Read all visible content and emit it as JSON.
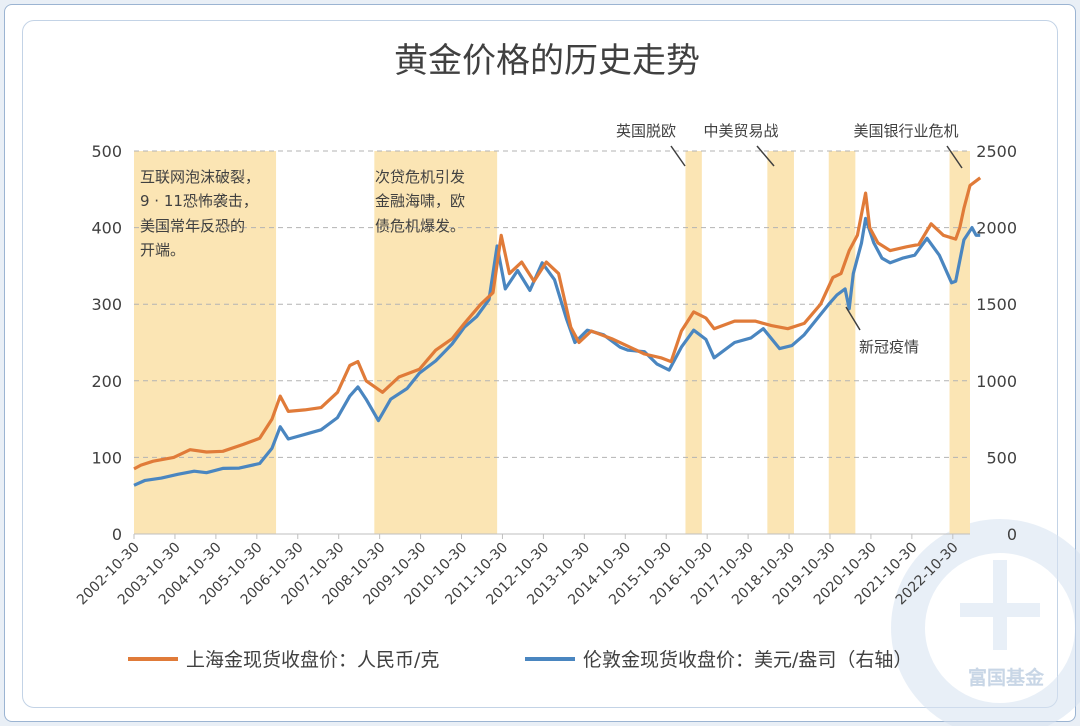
{
  "chart_data": {
    "type": "line",
    "title": "黄金价格的历史走势",
    "x_tick_labels": [
      "2002-10-30",
      "2003-10-30",
      "2004-10-30",
      "2005-10-30",
      "2006-10-30",
      "2007-10-30",
      "2008-10-30",
      "2009-10-30",
      "2010-10-30",
      "2011-10-30",
      "2012-10-30",
      "2013-10-30",
      "2014-10-30",
      "2015-10-30",
      "2016-10-30",
      "2017-10-30",
      "2018-10-30",
      "2019-10-30",
      "2020-10-30",
      "2021-10-30",
      "2022-10-30"
    ],
    "x_range": [
      2002.83,
      2023.25
    ],
    "left_axis": {
      "range": [
        0,
        500
      ],
      "ticks": [
        0,
        100,
        200,
        300,
        400,
        500
      ]
    },
    "right_axis": {
      "range": [
        0,
        2500
      ],
      "ticks": [
        0,
        500,
        1000,
        1500,
        2000,
        2500
      ]
    },
    "grid": "horizontal dashed",
    "legend_position": "bottom",
    "series": [
      {
        "name": "上海金现货收盘价：人民币/克",
        "color": "#e07b39",
        "axis": "left",
        "points": [
          [
            2002.83,
            85
          ],
          [
            2003.0,
            90
          ],
          [
            2003.3,
            95
          ],
          [
            2003.8,
            100
          ],
          [
            2004.2,
            110
          ],
          [
            2004.6,
            107
          ],
          [
            2005.0,
            108
          ],
          [
            2005.5,
            117
          ],
          [
            2005.9,
            125
          ],
          [
            2006.2,
            150
          ],
          [
            2006.4,
            180
          ],
          [
            2006.6,
            160
          ],
          [
            2007.0,
            162
          ],
          [
            2007.4,
            165
          ],
          [
            2007.8,
            185
          ],
          [
            2008.1,
            220
          ],
          [
            2008.3,
            225
          ],
          [
            2008.5,
            200
          ],
          [
            2008.9,
            185
          ],
          [
            2009.3,
            205
          ],
          [
            2009.8,
            215
          ],
          [
            2010.2,
            240
          ],
          [
            2010.6,
            255
          ],
          [
            2010.9,
            275
          ],
          [
            2011.3,
            300
          ],
          [
            2011.6,
            315
          ],
          [
            2011.8,
            390
          ],
          [
            2012.0,
            340
          ],
          [
            2012.3,
            355
          ],
          [
            2012.6,
            330
          ],
          [
            2012.9,
            355
          ],
          [
            2013.2,
            340
          ],
          [
            2013.5,
            270
          ],
          [
            2013.7,
            250
          ],
          [
            2014.0,
            265
          ],
          [
            2014.5,
            255
          ],
          [
            2014.9,
            245
          ],
          [
            2015.3,
            235
          ],
          [
            2015.7,
            230
          ],
          [
            2015.95,
            225
          ],
          [
            2016.2,
            265
          ],
          [
            2016.5,
            290
          ],
          [
            2016.8,
            282
          ],
          [
            2017.0,
            268
          ],
          [
            2017.5,
            278
          ],
          [
            2018.0,
            278
          ],
          [
            2018.4,
            272
          ],
          [
            2018.8,
            268
          ],
          [
            2019.2,
            275
          ],
          [
            2019.6,
            300
          ],
          [
            2019.9,
            335
          ],
          [
            2020.1,
            340
          ],
          [
            2020.3,
            370
          ],
          [
            2020.5,
            390
          ],
          [
            2020.7,
            445
          ],
          [
            2020.8,
            400
          ],
          [
            2021.0,
            380
          ],
          [
            2021.3,
            370
          ],
          [
            2021.7,
            375
          ],
          [
            2022.0,
            378
          ],
          [
            2022.3,
            405
          ],
          [
            2022.6,
            390
          ],
          [
            2022.9,
            385
          ],
          [
            2023.0,
            400
          ],
          [
            2023.1,
            425
          ],
          [
            2023.25,
            455
          ],
          [
            2023.5,
            465
          ]
        ]
      },
      {
        "name": "伦敦金现货收盘价：美元/盎司（右轴）",
        "color": "#4a86c0",
        "axis": "right",
        "points": [
          [
            2002.83,
            318
          ],
          [
            2003.1,
            350
          ],
          [
            2003.5,
            365
          ],
          [
            2003.9,
            390
          ],
          [
            2004.3,
            410
          ],
          [
            2004.6,
            400
          ],
          [
            2005.0,
            428
          ],
          [
            2005.4,
            430
          ],
          [
            2005.9,
            460
          ],
          [
            2006.2,
            560
          ],
          [
            2006.4,
            700
          ],
          [
            2006.6,
            620
          ],
          [
            2007.0,
            650
          ],
          [
            2007.4,
            680
          ],
          [
            2007.8,
            760
          ],
          [
            2008.1,
            900
          ],
          [
            2008.3,
            960
          ],
          [
            2008.5,
            880
          ],
          [
            2008.8,
            740
          ],
          [
            2009.1,
            880
          ],
          [
            2009.5,
            950
          ],
          [
            2009.8,
            1050
          ],
          [
            2010.2,
            1130
          ],
          [
            2010.6,
            1240
          ],
          [
            2010.9,
            1350
          ],
          [
            2011.2,
            1420
          ],
          [
            2011.5,
            1530
          ],
          [
            2011.7,
            1880
          ],
          [
            2011.9,
            1600
          ],
          [
            2012.2,
            1720
          ],
          [
            2012.5,
            1590
          ],
          [
            2012.8,
            1770
          ],
          [
            2013.1,
            1660
          ],
          [
            2013.4,
            1400
          ],
          [
            2013.6,
            1250
          ],
          [
            2013.9,
            1330
          ],
          [
            2014.3,
            1300
          ],
          [
            2014.7,
            1220
          ],
          [
            2014.9,
            1200
          ],
          [
            2015.3,
            1190
          ],
          [
            2015.6,
            1110
          ],
          [
            2015.9,
            1070
          ],
          [
            2016.2,
            1220
          ],
          [
            2016.5,
            1330
          ],
          [
            2016.8,
            1270
          ],
          [
            2017.0,
            1150
          ],
          [
            2017.5,
            1250
          ],
          [
            2017.9,
            1280
          ],
          [
            2018.2,
            1340
          ],
          [
            2018.6,
            1210
          ],
          [
            2018.9,
            1230
          ],
          [
            2019.2,
            1300
          ],
          [
            2019.5,
            1400
          ],
          [
            2019.8,
            1500
          ],
          [
            2020.0,
            1560
          ],
          [
            2020.2,
            1600
          ],
          [
            2020.3,
            1470
          ],
          [
            2020.4,
            1700
          ],
          [
            2020.6,
            1900
          ],
          [
            2020.7,
            2060
          ],
          [
            2020.9,
            1900
          ],
          [
            2021.1,
            1800
          ],
          [
            2021.3,
            1770
          ],
          [
            2021.6,
            1800
          ],
          [
            2021.9,
            1820
          ],
          [
            2022.2,
            1930
          ],
          [
            2022.5,
            1820
          ],
          [
            2022.8,
            1640
          ],
          [
            2022.9,
            1650
          ],
          [
            2023.1,
            1920
          ],
          [
            2023.3,
            2000
          ],
          [
            2023.4,
            1950
          ],
          [
            2023.5,
            1950
          ]
        ]
      }
    ],
    "shaded_periods": [
      {
        "label": "互联网泡沫破裂，9 · 11恐怖袭击，美国常年反恐的开端。",
        "start": 2002.83,
        "end": 2006.3
      },
      {
        "label": "次贷危机引发金融海啸，欧债危机爆发。",
        "start": 2008.7,
        "end": 2011.7
      },
      {
        "label": "英国脱欧",
        "start": 2016.3,
        "end": 2016.7
      },
      {
        "label": "中美贸易战",
        "start": 2018.3,
        "end": 2018.95
      },
      {
        "label": "",
        "start": 2019.8,
        "end": 2020.45
      },
      {
        "label": "美国银行业危机",
        "start": 2022.75,
        "end": 2023.45
      }
    ],
    "annotations": [
      {
        "text": "新冠疫情"
      }
    ]
  },
  "text": {
    "title": "黄金价格的历史走势",
    "box1": [
      "互联网泡沫破裂，",
      "9 · 11恐怖袭击，",
      "美国常年反恐的",
      "开端。"
    ],
    "box2": [
      "次贷危机引发",
      "金融海啸，欧",
      "债危机爆发。"
    ],
    "brexit": "英国脱欧",
    "tradewar": "中美贸易战",
    "bankcrisis": "美国银行业危机",
    "covid": "新冠疫情",
    "legend1": "上海金现货收盘价：人民币/克",
    "legend2": "伦敦金现货收盘价：美元/盎司（右轴）",
    "watermark": "富国基金"
  },
  "colors": {
    "shade": "#fbe5b4",
    "orange": "#e07b39",
    "blue": "#4a86c0",
    "grid": "#b3b3b3",
    "text": "#404040",
    "watermark_ring": "#d7e3f1"
  }
}
